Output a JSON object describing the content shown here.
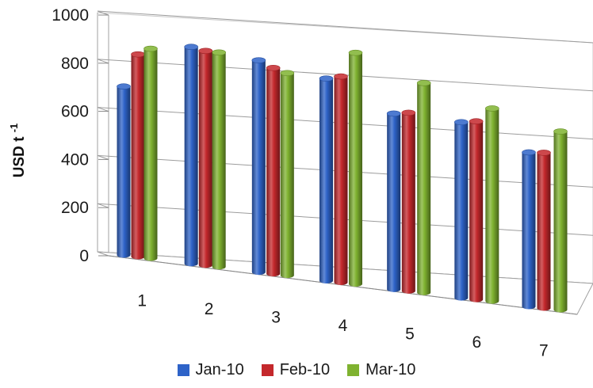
{
  "chart_data": {
    "type": "bar",
    "style": "3d-clustered-cylinder",
    "title": "",
    "xlabel": "",
    "ylabel_main": "USD t",
    "ylabel_sup": "-1",
    "categories": [
      "1",
      "2",
      "3",
      "4",
      "5",
      "6",
      "7"
    ],
    "ylim": [
      0,
      1000
    ],
    "yticks": [
      "0",
      "200",
      "400",
      "600",
      "800",
      "1000"
    ],
    "grid": true,
    "legend_position": "bottom",
    "series": [
      {
        "name": "Jan-10",
        "color": "#2e63c8",
        "values": [
          700,
          900,
          880,
          840,
          730,
          730,
          640
        ]
      },
      {
        "name": "Feb-10",
        "color": "#c4282c",
        "values": [
          840,
          890,
          855,
          855,
          740,
          740,
          645
        ]
      },
      {
        "name": "Mar-10",
        "color": "#7fb230",
        "values": [
          870,
          890,
          840,
          960,
          870,
          800,
          740
        ]
      }
    ]
  }
}
